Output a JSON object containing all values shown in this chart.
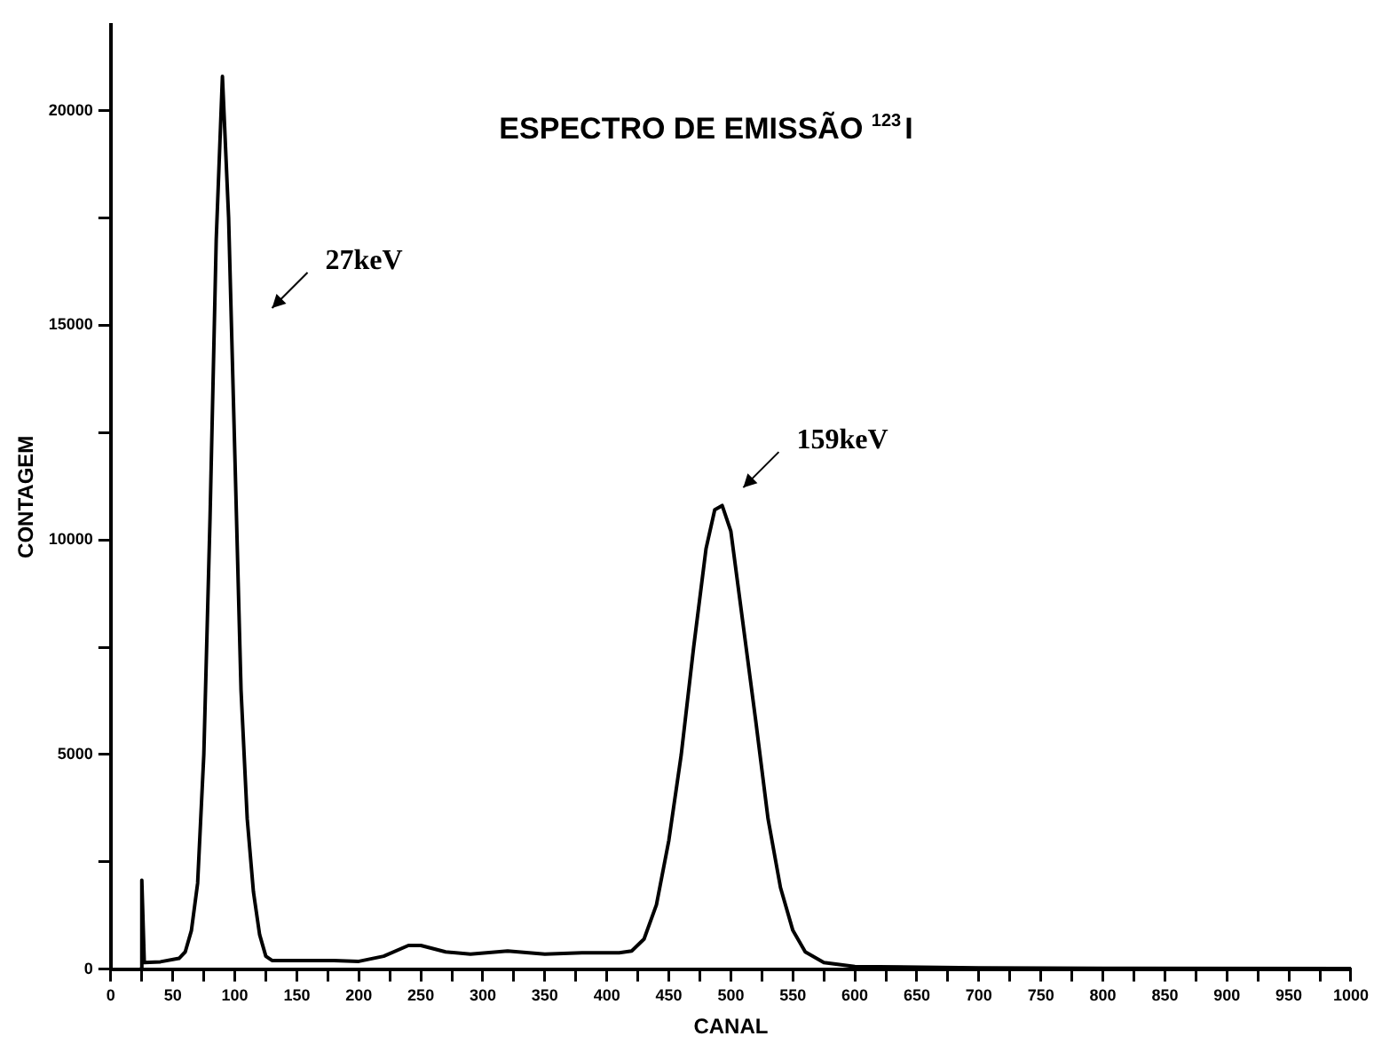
{
  "chart_data": {
    "type": "line",
    "title": "ESPECTRO DE EMISSÃO $^{123}$I",
    "xlabel": "CANAL",
    "ylabel": "CONTAGEM",
    "x": [
      24,
      25,
      27,
      40,
      55,
      60,
      65,
      70,
      75,
      80,
      85,
      90,
      95,
      100,
      105,
      110,
      115,
      120,
      125,
      130,
      150,
      180,
      200,
      220,
      240,
      250,
      270,
      290,
      320,
      350,
      380,
      410,
      420,
      430,
      440,
      450,
      460,
      470,
      480,
      487,
      493,
      500,
      510,
      520,
      530,
      540,
      550,
      560,
      575,
      600,
      700,
      800,
      1000
    ],
    "series": [
      {
        "color": "#000000",
        "values": [
          0,
          2070,
          150,
          170,
          250,
          400,
          900,
          2000,
          5000,
          10500,
          17000,
          20800,
          17500,
          12000,
          6500,
          3500,
          1800,
          800,
          300,
          200,
          200,
          200,
          180,
          300,
          550,
          550,
          400,
          350,
          420,
          350,
          380,
          380,
          420,
          700,
          1500,
          3000,
          5000,
          7500,
          9800,
          10700,
          10800,
          10200,
          8000,
          5800,
          3500,
          1900,
          900,
          400,
          150,
          60,
          30,
          20,
          10
        ]
      }
    ],
    "xlim": [
      0,
      1000
    ],
    "ylim": [
      0,
      22000
    ],
    "xticks": [
      0,
      {
        "value": 25,
        "label": null
      },
      50,
      {
        "value": 75,
        "label": null
      },
      100,
      {
        "value": 125,
        "label": null
      },
      150,
      {
        "value": 175,
        "label": null
      },
      200,
      {
        "value": 225,
        "label": null
      },
      250,
      {
        "value": 275,
        "label": null
      },
      300,
      {
        "value": 325,
        "label": null
      },
      350,
      {
        "value": 375,
        "label": null
      },
      400,
      {
        "value": 425,
        "label": null
      },
      450,
      {
        "value": 475,
        "label": null
      },
      500,
      {
        "value": 525,
        "label": null
      },
      550,
      {
        "value": 575,
        "label": null
      },
      600,
      {
        "value": 625,
        "label": null
      },
      650,
      {
        "value": 675,
        "label": null
      },
      700,
      {
        "value": 725,
        "label": null
      },
      750,
      {
        "value": 775,
        "label": null
      },
      800,
      {
        "value": 825,
        "label": null
      },
      850,
      {
        "value": 875,
        "label": null
      },
      900,
      {
        "value": 925,
        "label": null
      },
      950,
      {
        "value": 975,
        "label": null
      },
      1000
    ],
    "yticks": [
      0,
      {
        "value": 2500,
        "label": null
      },
      5000,
      {
        "value": 7500,
        "label": null
      },
      10000,
      {
        "value": 12500,
        "label": null
      },
      15000,
      {
        "value": 17500,
        "label": null
      },
      20000
    ],
    "annotations": [
      "27keV",
      "159keV"
    ],
    "grid": false,
    "legend": false,
    "marker": "none",
    "line_style": "solid"
  }
}
